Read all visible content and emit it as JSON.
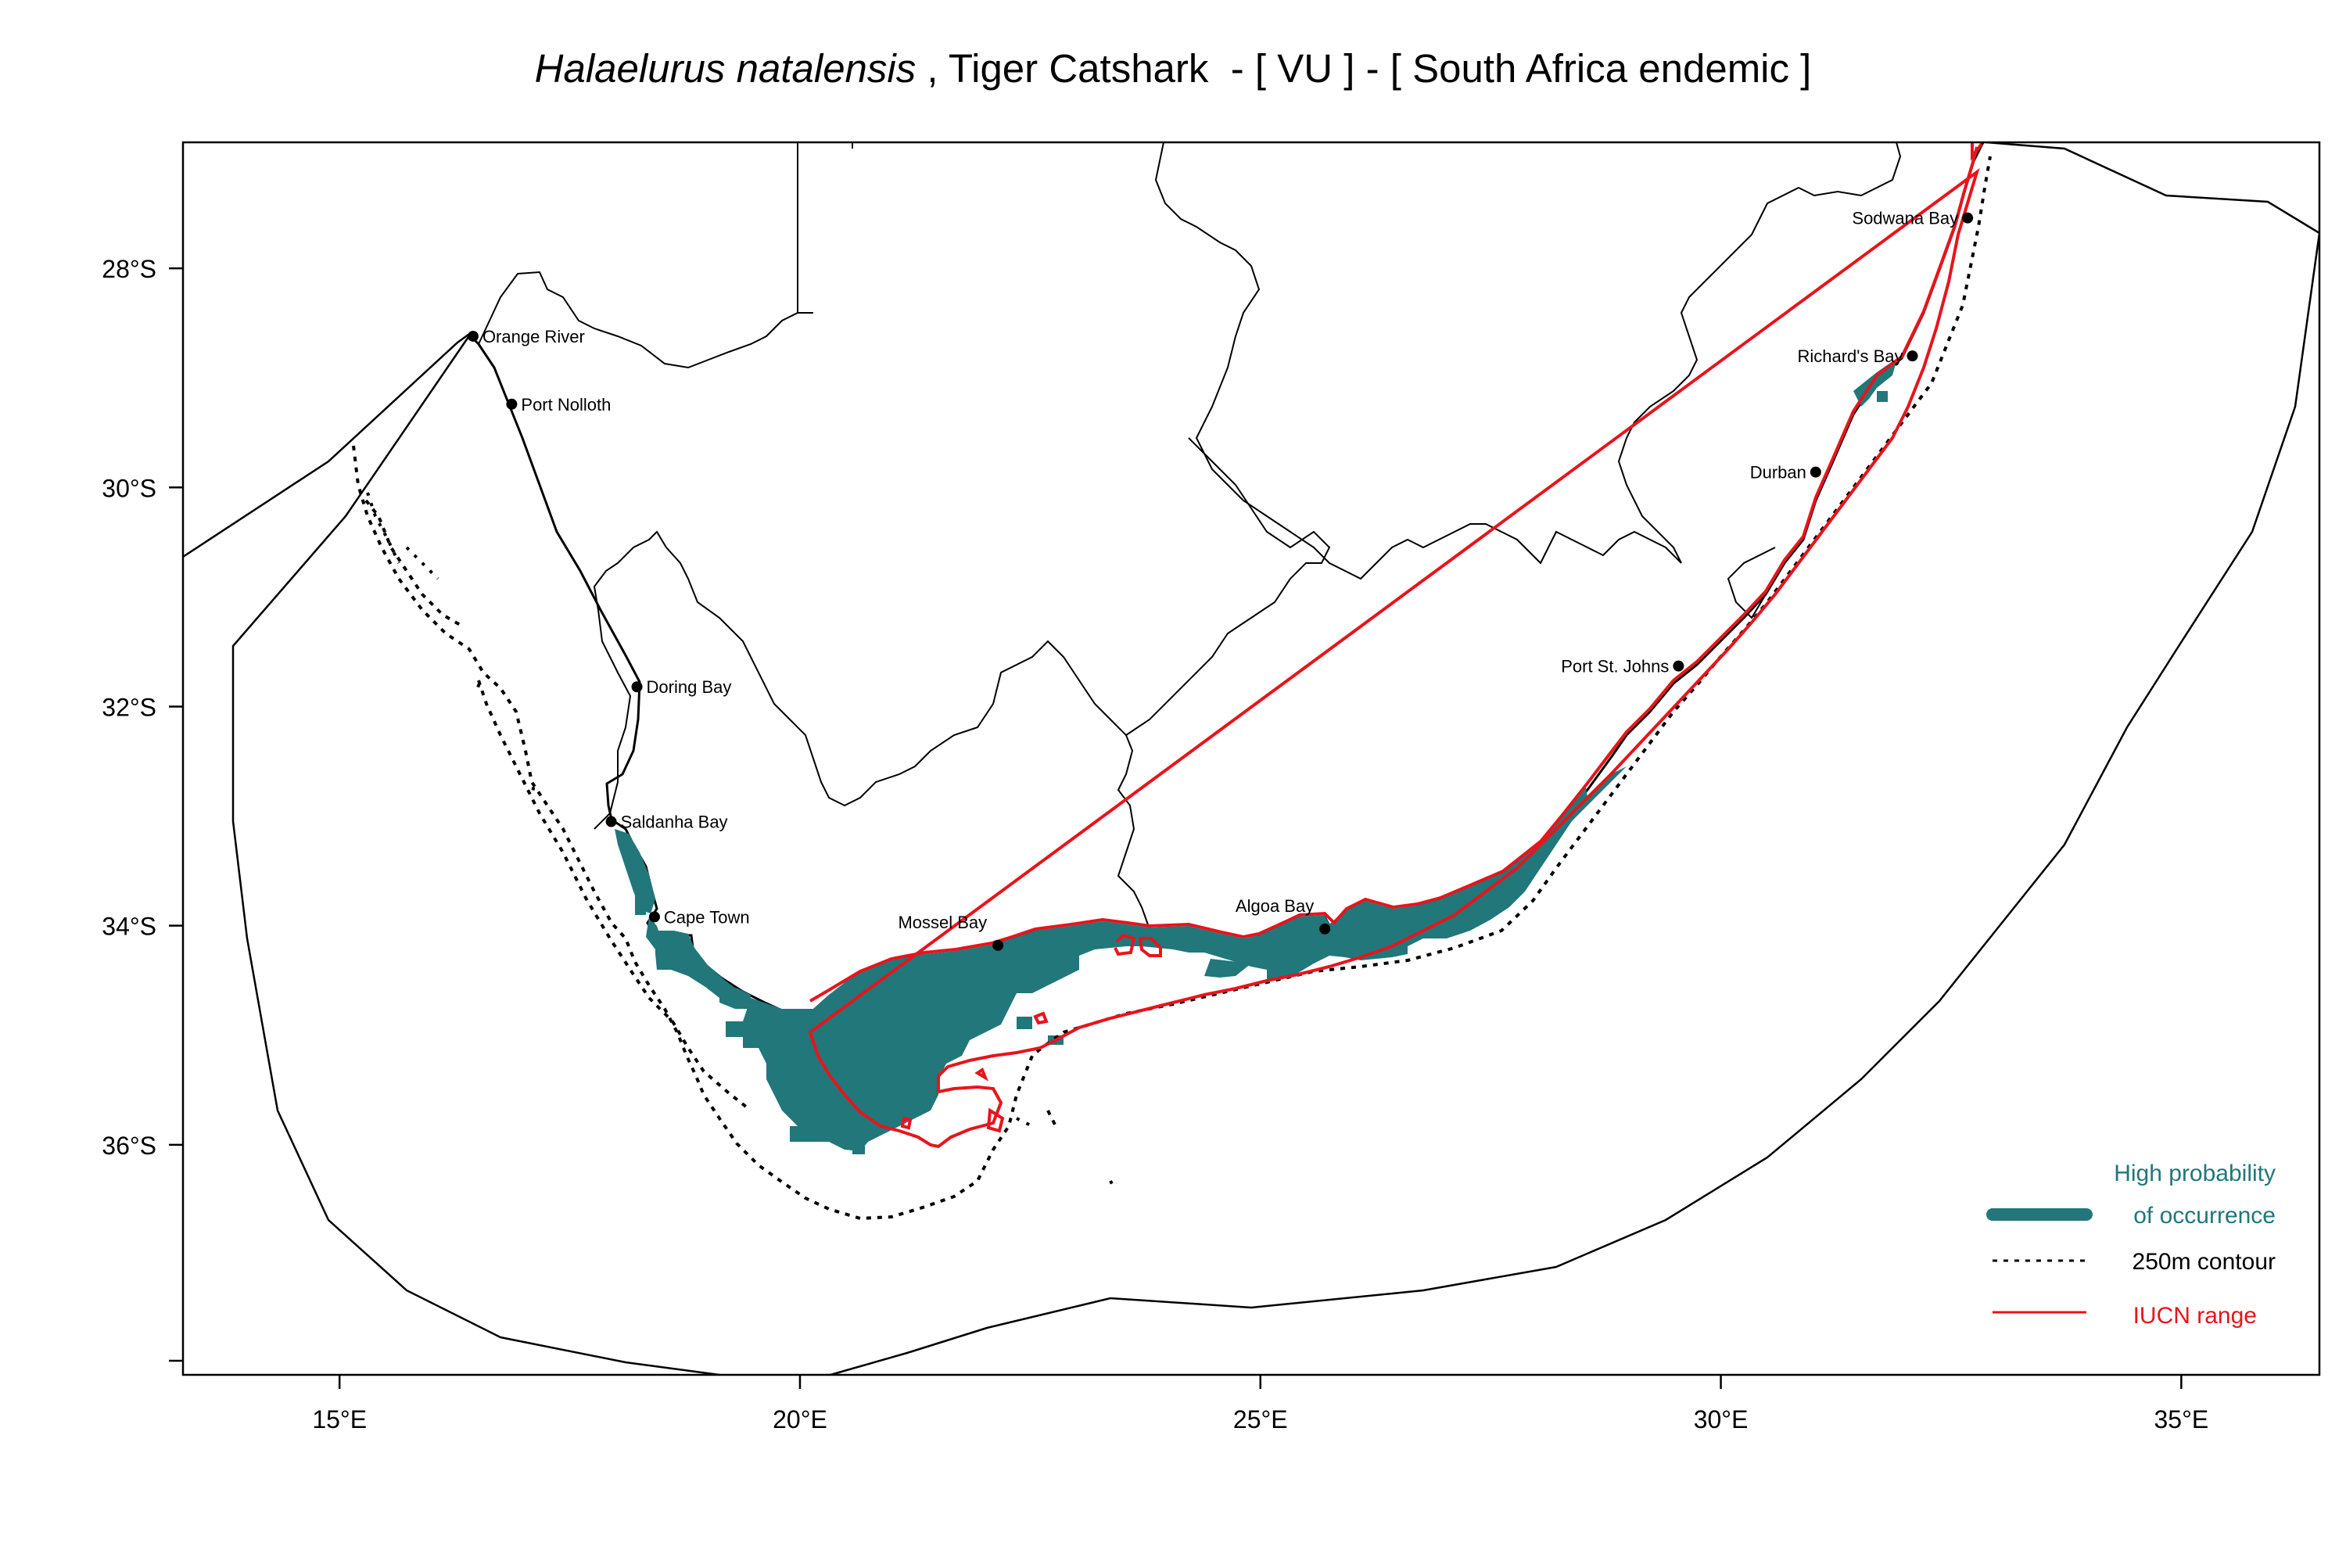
{
  "title": {
    "species": "Halaelurus natalensis",
    "rest": " , Tiger Catshark  - [ VU ] - [ South Africa endemic ]"
  },
  "axes": {
    "x_ticks": [
      "15°E",
      "20°E",
      "25°E",
      "30°E",
      "35°E"
    ],
    "y_ticks": [
      "28°S",
      "30°S",
      "32°S",
      "34°S",
      "36°S"
    ],
    "x_range_deg_E": [
      13.3,
      36.5
    ],
    "y_range_deg_S": [
      26.85,
      38.1
    ]
  },
  "places": [
    {
      "name": "Orange River",
      "lon": 16.45,
      "lat": -28.62,
      "label_side": "right"
    },
    {
      "name": "Port Nolloth",
      "lon": 16.87,
      "lat": -29.24,
      "label_side": "right"
    },
    {
      "name": "Doring Bay",
      "lon": 18.23,
      "lat": -31.82,
      "label_side": "right"
    },
    {
      "name": "Saldanha Bay",
      "lon": 17.95,
      "lat": -33.05,
      "label_side": "right"
    },
    {
      "name": "Cape Town",
      "lon": 18.42,
      "lat": -33.92,
      "label_side": "right"
    },
    {
      "name": "Mossel Bay",
      "lon": 22.15,
      "lat": -34.18,
      "label_side": "above-left"
    },
    {
      "name": "Algoa Bay",
      "lon": 25.7,
      "lat": -34.03,
      "label_side": "above-left"
    },
    {
      "name": "Port St. Johns",
      "lon": 29.54,
      "lat": -31.63,
      "label_side": "left"
    },
    {
      "name": "Durban",
      "lon": 31.03,
      "lat": -29.86,
      "label_side": "left"
    },
    {
      "name": "Richard's Bay",
      "lon": 32.08,
      "lat": -28.8,
      "label_side": "left"
    },
    {
      "name": "Sodwana Bay",
      "lon": 32.68,
      "lat": -27.54,
      "label_side": "left"
    }
  ],
  "legend": {
    "occurrence_line1": "High probability",
    "occurrence_line2": "of occurrence",
    "contour_label": "250m contour",
    "iucn_label": "IUCN range"
  },
  "colors": {
    "occurrence": "#21777A",
    "iucn": "#E8141C",
    "lines": "#000000",
    "background": "#FFFFFF"
  }
}
